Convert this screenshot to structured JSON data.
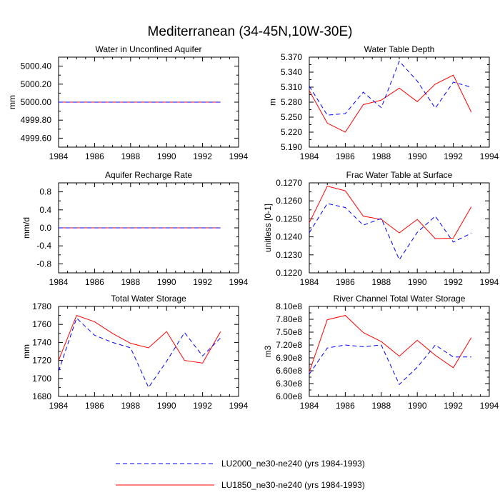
{
  "figure_title": "Mediterranean (34-45N,10W-30E)",
  "colors": {
    "lu1850": "#ff0000",
    "lu2000": "#0000ff"
  },
  "legend": [
    {
      "name": "LU2000_ne30-ne240 (yrs 1984-1993)",
      "style": "dashed",
      "color": "#0000ff"
    },
    {
      "name": "LU1850_ne30-ne240 (yrs 1984-1993)",
      "style": "solid",
      "color": "#ff0000"
    }
  ],
  "chart_data": [
    {
      "type": "line",
      "title": "Water in Unconfined Aquifer",
      "xlabel": "",
      "ylabel": "mm",
      "xlim": [
        1984,
        1994
      ],
      "ylim": [
        4999.5,
        5000.5
      ],
      "xticks": [
        1984,
        1986,
        1988,
        1990,
        1992,
        1994
      ],
      "yticks": [
        4999.6,
        4999.8,
        5000.0,
        5000.2,
        5000.4
      ],
      "ytick_labels": [
        "4999.60",
        "4999.80",
        "5000.00",
        "5000.20",
        "5000.40"
      ],
      "x": [
        1984,
        1985,
        1986,
        1987,
        1988,
        1989,
        1990,
        1991,
        1992,
        1993
      ],
      "series": [
        {
          "name": "LU2000_ne30-ne240 (yrs 1984-1993)",
          "values": [
            5000,
            5000,
            5000,
            5000,
            5000,
            5000,
            5000,
            5000,
            5000,
            5000
          ]
        },
        {
          "name": "LU1850_ne30-ne240 (yrs 1984-1993)",
          "values": [
            5000,
            5000,
            5000,
            5000,
            5000,
            5000,
            5000,
            5000,
            5000,
            5000
          ]
        }
      ]
    },
    {
      "type": "line",
      "title": "Water Table Depth",
      "xlabel": "",
      "ylabel": "m",
      "xlim": [
        1984,
        1994
      ],
      "ylim": [
        5.19,
        5.37
      ],
      "xticks": [
        1984,
        1986,
        1988,
        1990,
        1992,
        1994
      ],
      "yticks": [
        5.19,
        5.22,
        5.25,
        5.28,
        5.31,
        5.34,
        5.37
      ],
      "ytick_labels": [
        "5.190",
        "5.220",
        "5.250",
        "5.280",
        "5.310",
        "5.340",
        "5.370"
      ],
      "x": [
        1984,
        1985,
        1986,
        1987,
        1988,
        1989,
        1990,
        1991,
        1992,
        1993
      ],
      "series": [
        {
          "name": "LU2000_ne30-ne240 (yrs 1984-1993)",
          "values": [
            5.312,
            5.254,
            5.257,
            5.3,
            5.269,
            5.362,
            5.322,
            5.268,
            5.32,
            5.31
          ]
        },
        {
          "name": "LU1850_ne30-ne240 (yrs 1984-1993)",
          "values": [
            5.303,
            5.238,
            5.22,
            5.275,
            5.284,
            5.308,
            5.281,
            5.316,
            5.334,
            5.26
          ]
        }
      ]
    },
    {
      "type": "line",
      "title": "Aquifer Recharge Rate",
      "xlabel": "",
      "ylabel": "mm/d",
      "xlim": [
        1984,
        1994
      ],
      "ylim": [
        -1.0,
        1.0
      ],
      "xticks": [
        1984,
        1986,
        1988,
        1990,
        1992,
        1994
      ],
      "yticks": [
        -0.8,
        -0.4,
        0.0,
        0.4,
        0.8
      ],
      "ytick_labels": [
        "-0.8",
        "-0.4",
        "0.0",
        "0.4",
        "0.8"
      ],
      "x": [
        1984,
        1985,
        1986,
        1987,
        1988,
        1989,
        1990,
        1991,
        1992,
        1993
      ],
      "series": [
        {
          "name": "LU2000_ne30-ne240 (yrs 1984-1993)",
          "values": [
            0,
            0,
            0,
            0,
            0,
            0,
            0,
            0,
            0,
            0
          ]
        },
        {
          "name": "LU1850_ne30-ne240 (yrs 1984-1993)",
          "values": [
            0,
            0,
            0,
            0,
            0,
            0,
            0,
            0,
            0,
            0
          ]
        }
      ]
    },
    {
      "type": "line",
      "title": "Frac Water Table at Surface",
      "xlabel": "",
      "ylabel": "unitless [0-1]",
      "xlim": [
        1984,
        1994
      ],
      "ylim": [
        0.122,
        0.127
      ],
      "xticks": [
        1984,
        1986,
        1988,
        1990,
        1992,
        1994
      ],
      "yticks": [
        0.122,
        0.123,
        0.124,
        0.125,
        0.126,
        0.127
      ],
      "ytick_labels": [
        "0.1220",
        "0.1230",
        "0.1240",
        "0.1250",
        "0.1260",
        "0.1270"
      ],
      "x": [
        1984,
        1985,
        1986,
        1987,
        1988,
        1989,
        1990,
        1991,
        1992,
        1993
      ],
      "series": [
        {
          "name": "LU2000_ne30-ne240 (yrs 1984-1993)",
          "values": [
            0.12423,
            0.12585,
            0.12563,
            0.12465,
            0.12502,
            0.12273,
            0.12425,
            0.12515,
            0.12371,
            0.1242
          ]
        },
        {
          "name": "LU1850_ne30-ne240 (yrs 1984-1993)",
          "values": [
            0.12478,
            0.12682,
            0.12656,
            0.12515,
            0.12497,
            0.12422,
            0.12497,
            0.1239,
            0.12393,
            0.12567
          ]
        }
      ]
    },
    {
      "type": "line",
      "title": "Total Water Storage",
      "xlabel": "",
      "ylabel": "mm",
      "xlim": [
        1984,
        1994
      ],
      "ylim": [
        1680,
        1780
      ],
      "xticks": [
        1984,
        1986,
        1988,
        1990,
        1992,
        1994
      ],
      "yticks": [
        1680,
        1700,
        1720,
        1740,
        1760,
        1780
      ],
      "ytick_labels": [
        "1680",
        "1700",
        "1720",
        "1740",
        "1760",
        "1780"
      ],
      "x": [
        1984,
        1985,
        1986,
        1987,
        1988,
        1989,
        1990,
        1991,
        1992,
        1993
      ],
      "series": [
        {
          "name": "LU2000_ne30-ne240 (yrs 1984-1993)",
          "values": [
            1708,
            1767,
            1748,
            1740,
            1734,
            1690,
            1719,
            1751,
            1725,
            1745
          ]
        },
        {
          "name": "LU1850_ne30-ne240 (yrs 1984-1993)",
          "values": [
            1720,
            1770,
            1763,
            1750,
            1739,
            1734,
            1752,
            1720,
            1717,
            1752
          ]
        }
      ]
    },
    {
      "type": "line",
      "title": "River Channel Total Water Storage",
      "xlabel": "",
      "ylabel": "m3",
      "xlim": [
        1984,
        1994
      ],
      "ylim": [
        600000000,
        810000000
      ],
      "xticks": [
        1984,
        1986,
        1988,
        1990,
        1992,
        1994
      ],
      "yticks": [
        600000000,
        630000000,
        660000000,
        690000000,
        720000000,
        750000000,
        780000000,
        810000000
      ],
      "ytick_labels": [
        "6.00e8",
        "6.30e8",
        "6.60e8",
        "6.90e8",
        "7.20e8",
        "7.50e8",
        "7.80e8",
        "8.10e8"
      ],
      "x": [
        1984,
        1985,
        1986,
        1987,
        1988,
        1989,
        1990,
        1991,
        1992,
        1993
      ],
      "series": [
        {
          "name": "LU2000_ne30-ne240 (yrs 1984-1993)",
          "values": [
            652000000,
            713000000,
            720000000,
            716000000,
            720000000,
            628000000,
            668000000,
            720000000,
            692000000,
            692000000
          ]
        },
        {
          "name": "LU1850_ne30-ne240 (yrs 1984-1993)",
          "values": [
            657000000,
            779000000,
            789000000,
            749000000,
            728000000,
            694000000,
            731000000,
            696000000,
            667000000,
            737000000
          ]
        }
      ]
    }
  ]
}
